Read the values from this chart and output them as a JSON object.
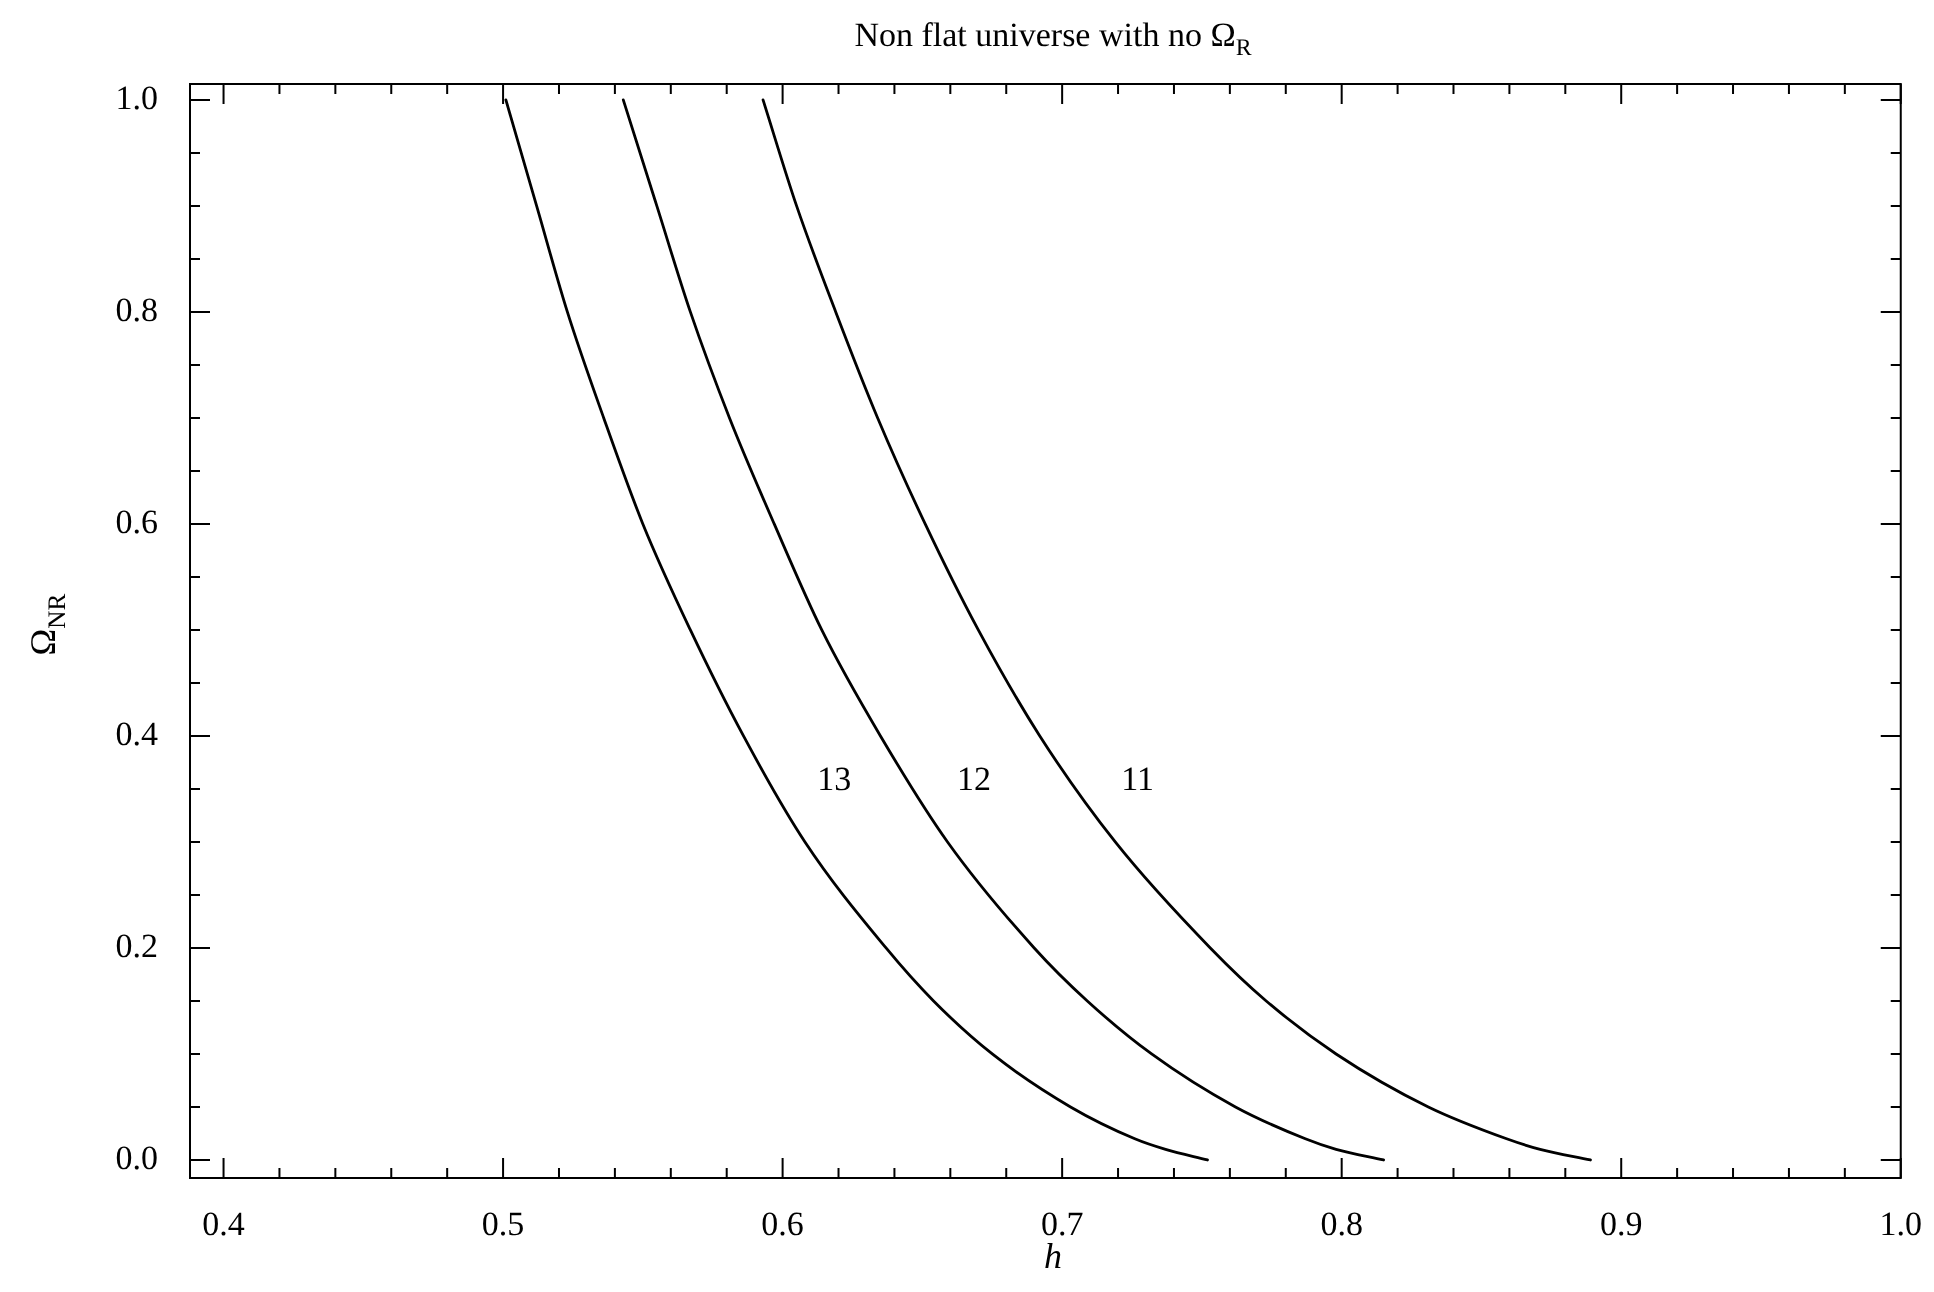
{
  "chart_data": {
    "type": "line",
    "title": "Non flat universe with no Ω$_{R}$",
    "xlabel": "h",
    "ylabel": "Ω$_{NR}$",
    "xlim": [
      0.388,
      1.0
    ],
    "ylim": [
      -0.017,
      1.015
    ],
    "xticks": [
      0.4,
      {
        "value": 0.42,
        "label": null
      },
      {
        "value": 0.44,
        "label": null
      },
      {
        "value": 0.46,
        "label": null
      },
      {
        "value": 0.48,
        "label": null
      },
      0.5,
      {
        "value": 0.52,
        "label": null
      },
      {
        "value": 0.54,
        "label": null
      },
      {
        "value": 0.56,
        "label": null
      },
      {
        "value": 0.58,
        "label": null
      },
      0.6,
      {
        "value": 0.62,
        "label": null
      },
      {
        "value": 0.64,
        "label": null
      },
      {
        "value": 0.66,
        "label": null
      },
      {
        "value": 0.68,
        "label": null
      },
      0.7,
      {
        "value": 0.72,
        "label": null
      },
      {
        "value": 0.74,
        "label": null
      },
      {
        "value": 0.76,
        "label": null
      },
      {
        "value": 0.78,
        "label": null
      },
      0.8,
      {
        "value": 0.82,
        "label": null
      },
      {
        "value": 0.84,
        "label": null
      },
      {
        "value": 0.86,
        "label": null
      },
      {
        "value": 0.88,
        "label": null
      },
      0.9,
      {
        "value": 0.92,
        "label": null
      },
      {
        "value": 0.94,
        "label": null
      },
      {
        "value": 0.96,
        "label": null
      },
      {
        "value": 0.98,
        "label": null
      },
      {
        "value": 1.0,
        "label": "1.0"
      }
    ],
    "yticks": [
      {
        "value": 0,
        "label": "0.0"
      },
      {
        "value": 0.05,
        "label": null
      },
      {
        "value": 0.1,
        "label": null
      },
      {
        "value": 0.15,
        "label": null
      },
      0.2,
      {
        "value": 0.25,
        "label": null
      },
      {
        "value": 0.3,
        "label": null
      },
      {
        "value": 0.35,
        "label": null
      },
      0.4,
      {
        "value": 0.45,
        "label": null
      },
      {
        "value": 0.5,
        "label": null
      },
      {
        "value": 0.55,
        "label": null
      },
      0.6,
      {
        "value": 0.65,
        "label": null
      },
      {
        "value": 0.7,
        "label": null
      },
      {
        "value": 0.75,
        "label": null
      },
      0.8,
      {
        "value": 0.85,
        "label": null
      },
      {
        "value": 0.9,
        "label": null
      },
      {
        "value": 0.95,
        "label": null
      },
      {
        "value": 1.0,
        "label": "1.0"
      }
    ],
    "grid": false,
    "legend": false,
    "marker": "none",
    "line_style": "solid",
    "series": [
      {
        "name": "11",
        "color": "#000000",
        "x": [
          0.593,
          0.605,
          0.619,
          0.634,
          0.651,
          0.67,
          0.692,
          0.719,
          0.753,
          0.773,
          0.798,
          0.831,
          0.859,
          0.871,
          0.889
        ],
        "values": [
          1.0,
          0.9,
          0.8,
          0.7,
          0.6,
          0.5,
          0.4,
          0.3,
          0.2,
          0.15,
          0.1,
          0.05,
          0.02,
          0.01,
          0
        ]
      },
      {
        "name": "12",
        "color": "#000000",
        "x": [
          0.543,
          0.555,
          0.567,
          0.581,
          0.597,
          0.614,
          0.635,
          0.659,
          0.69,
          0.709,
          0.732,
          0.762,
          0.787,
          0.798,
          0.815
        ],
        "values": [
          1.0,
          0.9,
          0.8,
          0.7,
          0.6,
          0.5,
          0.4,
          0.3,
          0.2,
          0.15,
          0.1,
          0.05,
          0.02,
          0.01,
          0
        ]
      },
      {
        "name": "13",
        "color": "#000000",
        "x": [
          0.501,
          0.512,
          0.523,
          0.536,
          0.55,
          0.567,
          0.586,
          0.608,
          0.637,
          0.654,
          0.675,
          0.703,
          0.726,
          0.737,
          0.752
        ],
        "values": [
          1.0,
          0.9,
          0.8,
          0.7,
          0.6,
          0.5,
          0.4,
          0.3,
          0.2,
          0.15,
          0.1,
          0.05,
          0.02,
          0.01,
          0
        ]
      }
    ]
  }
}
